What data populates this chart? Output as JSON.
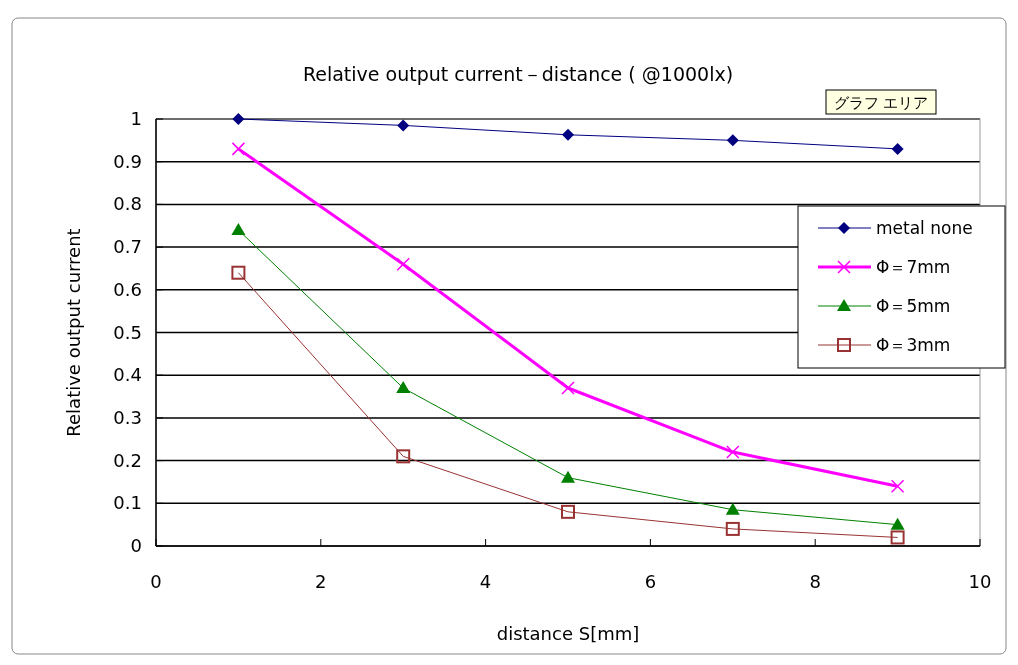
{
  "chart_data": {
    "type": "line",
    "title": "Relative output current－distance ( @1000lx)",
    "xlabel": "distance S[mm]",
    "ylabel": "Relative output current",
    "annotations": [
      "グラフ エリア"
    ],
    "x": [
      1,
      3,
      5,
      7,
      9
    ],
    "series": [
      {
        "name": "metal none",
        "color": "#000080",
        "values": [
          1.0,
          0.985,
          0.963,
          0.95,
          0.93
        ],
        "marker": "diamond"
      },
      {
        "name": "Φ＝7mm",
        "color": "#ff00ff",
        "values": [
          0.93,
          0.66,
          0.37,
          0.22,
          0.14
        ],
        "marker": "cross"
      },
      {
        "name": "Φ＝5mm",
        "color": "#008000",
        "values": [
          0.74,
          0.37,
          0.16,
          0.085,
          0.05
        ],
        "marker": "triangle"
      },
      {
        "name": "Φ＝3mm",
        "color": "#993333",
        "values": [
          0.64,
          0.21,
          0.08,
          0.04,
          0.02
        ],
        "marker": "square"
      }
    ],
    "xlim": [
      0,
      10
    ],
    "xticks": [
      0,
      2,
      4,
      6,
      8,
      10
    ],
    "ylim": [
      0,
      1
    ],
    "yticks": [
      0,
      0.1,
      0.2,
      0.3,
      0.4,
      0.5,
      0.6,
      0.7,
      0.8,
      0.9,
      1
    ],
    "grid": "y",
    "legend": "right"
  }
}
